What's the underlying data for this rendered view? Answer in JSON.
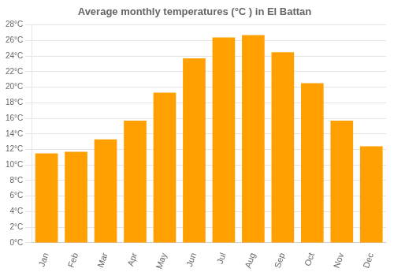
{
  "chart_data": {
    "type": "bar",
    "title": "Average monthly temperatures (°C ) in El Battan",
    "categories": [
      "Jan",
      "Feb",
      "Mar",
      "Apr",
      "May",
      "Jun",
      "Jul",
      "Aug",
      "Sep",
      "Oct",
      "Nov",
      "Dec"
    ],
    "values": [
      11.5,
      11.7,
      13.3,
      15.7,
      19.3,
      23.7,
      26.4,
      26.7,
      24.5,
      20.5,
      15.7,
      12.4
    ],
    "color": "#FFA000",
    "ylim": [
      0,
      28
    ],
    "yticks": [
      {
        "value": 0,
        "label": "0°C"
      },
      {
        "value": 2,
        "label": "2°C"
      },
      {
        "value": 4,
        "label": "4°C"
      },
      {
        "value": 6,
        "label": "6°C"
      },
      {
        "value": 8,
        "label": "8°C"
      },
      {
        "value": 10,
        "label": "10°C"
      },
      {
        "value": 12,
        "label": "12°C"
      },
      {
        "value": 14,
        "label": "14°C"
      },
      {
        "value": 16,
        "label": "16°C"
      },
      {
        "value": 18,
        "label": "18°C"
      },
      {
        "value": 20,
        "label": "20°C"
      },
      {
        "value": 22,
        "label": "22°C"
      },
      {
        "value": 24,
        "label": "24°C"
      },
      {
        "value": 26,
        "label": "26°C"
      },
      {
        "value": 28,
        "label": "28°C"
      }
    ],
    "grid": true
  }
}
